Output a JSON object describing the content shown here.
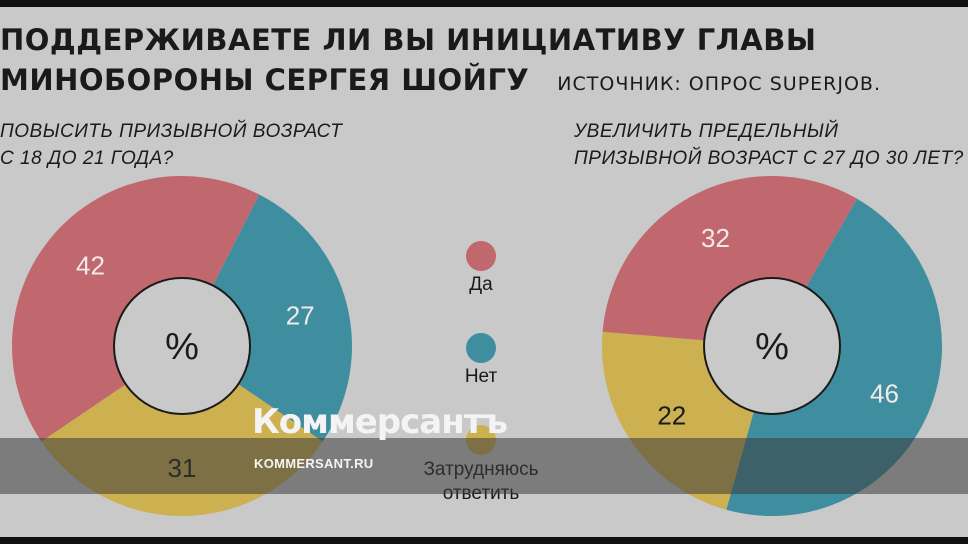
{
  "title": {
    "line1": "ПОДДЕРЖИВАЕТЕ ЛИ ВЫ ИНИЦИАТИВУ ГЛАВЫ",
    "line2": "МИНОБОРОНЫ СЕРГЕЯ ШОЙГУ",
    "source": "ИСТОЧНИК: ОПРОС SUPERJOB."
  },
  "center_label": "%",
  "colors": {
    "yes": "#c0686e",
    "no": "#3f8ea0",
    "unsure": "#cdb04f"
  },
  "legend": [
    {
      "key": "yes",
      "label": "Да"
    },
    {
      "key": "no",
      "label": "Нет"
    },
    {
      "key": "unsure",
      "label": "Затрудняюсь ответить"
    }
  ],
  "chart_data": [
    {
      "type": "pie",
      "title": "ПОВЫСИТЬ ПРИЗЫВНОЙ ВОЗРАСТ С 18 ДО 21 ГОДА?",
      "title_lines": [
        "ПОВЫСИТЬ ПРИЗЫВНОЙ ВОЗРАСТ",
        "С 18 ДО 21 ГОДА?"
      ],
      "categories": [
        "Да",
        "Нет",
        "Затрудняюсь ответить"
      ],
      "values": [
        42,
        27,
        31
      ]
    },
    {
      "type": "pie",
      "title": "УВЕЛИЧИТЬ ПРЕДЕЛЬНЫЙ ПРИЗЫВНОЙ ВОЗРАСТ С 27 ДО 30 ЛЕТ?",
      "title_lines": [
        "УВЕЛИЧИТЬ ПРЕДЕЛЬНЫЙ",
        "ПРИЗЫВНОЙ ВОЗРАСТ С 27 ДО 30 ЛЕТ?"
      ],
      "categories": [
        "Да",
        "Нет",
        "Затрудняюсь ответить"
      ],
      "values": [
        32,
        46,
        22
      ]
    }
  ],
  "watermark": {
    "logo": "Коммерсантъ",
    "url": "KOMMERSANT.RU"
  }
}
